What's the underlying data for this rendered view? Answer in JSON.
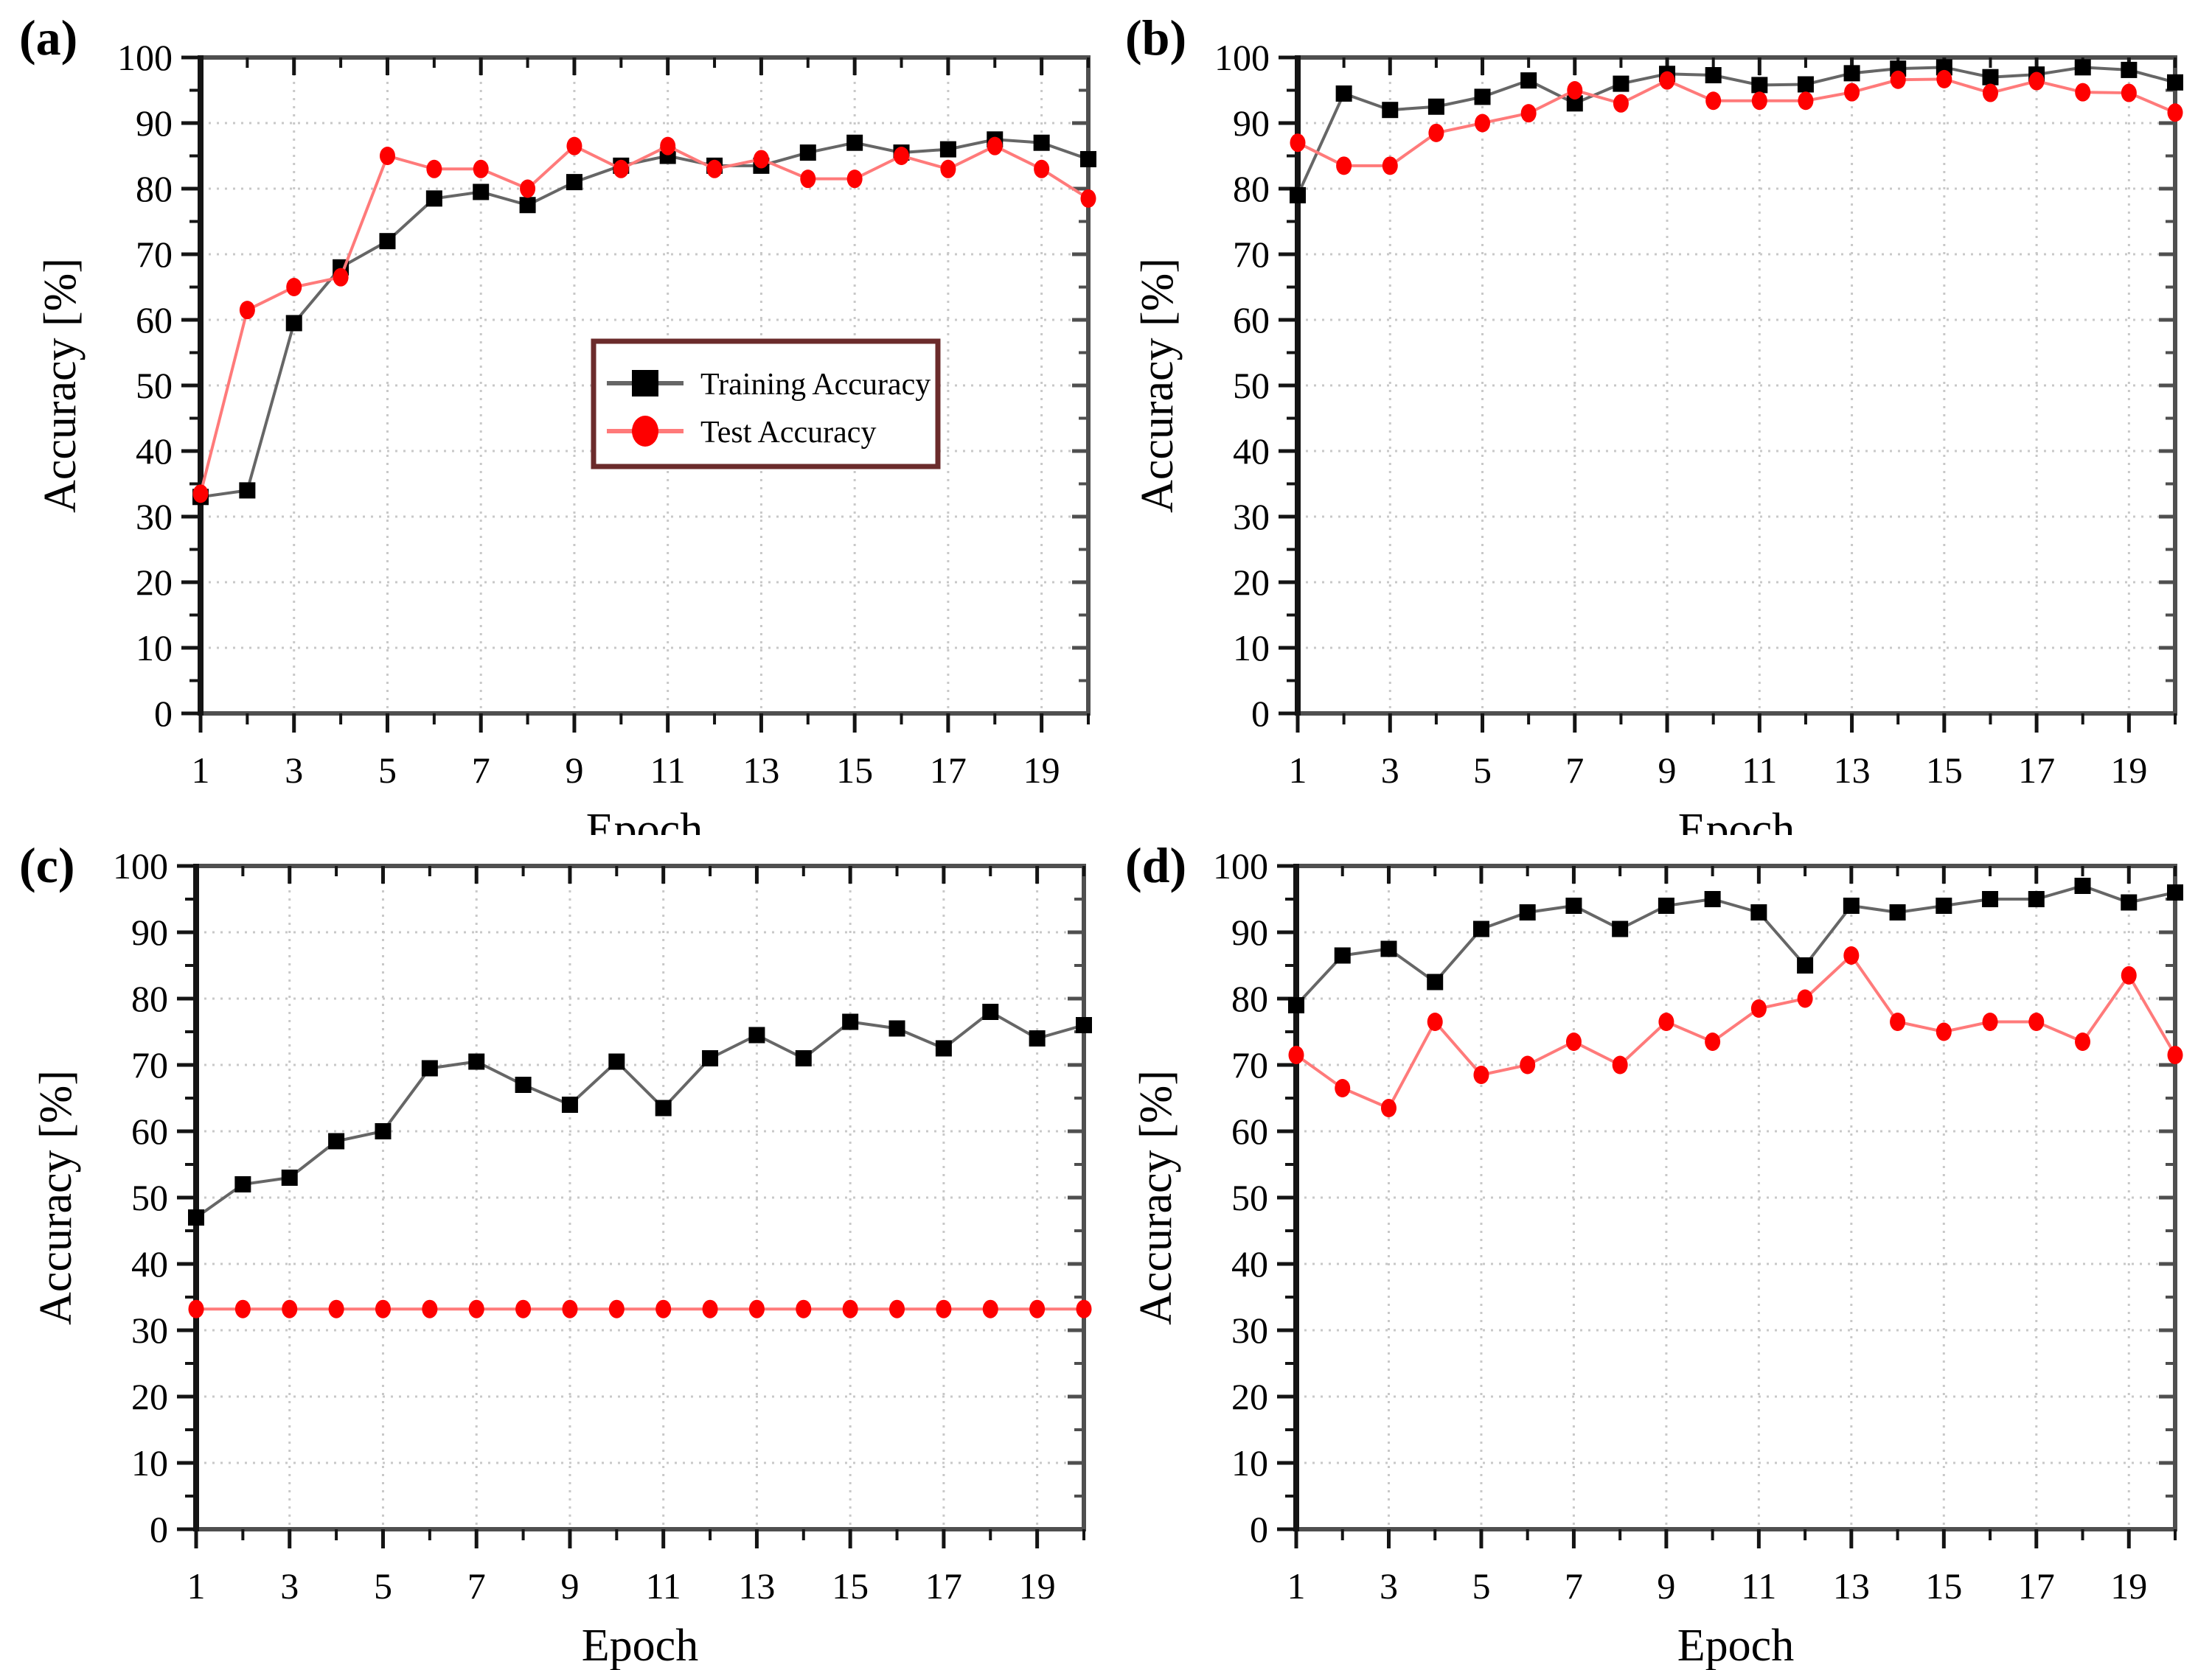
{
  "figure": {
    "legend": {
      "training_label": "Training Accuracy",
      "test_label": "Test Accuracy"
    },
    "colors": {
      "training_marker": "#000000",
      "training_line": "#666666",
      "test_marker": "#fe0000",
      "test_line": "#ff7a7a",
      "grid": "#c8c8c8",
      "frame": "#4f4f4f",
      "axis": "#141414",
      "legend_border": "#6b2b2b",
      "background": "#ffffff"
    }
  },
  "chart_data": [
    {
      "type": "line",
      "tag": "(a)",
      "xlabel": "Epoch",
      "ylabel": "Accuracy [%]",
      "xlim": [
        1,
        20
      ],
      "ylim": [
        0,
        100
      ],
      "xticks": [
        1,
        3,
        5,
        7,
        9,
        11,
        13,
        15,
        17,
        19
      ],
      "yticks": [
        0,
        10,
        20,
        30,
        40,
        50,
        60,
        70,
        80,
        90,
        100
      ],
      "grid": true,
      "legend_visible": true,
      "x": [
        1,
        2,
        3,
        4,
        5,
        6,
        7,
        8,
        9,
        10,
        11,
        12,
        13,
        14,
        15,
        16,
        17,
        18,
        19,
        20
      ],
      "series": [
        {
          "name": "Training Accuracy",
          "marker": "square",
          "values": [
            33,
            34,
            59.5,
            68,
            72,
            78.5,
            79.5,
            77.5,
            81,
            83.5,
            85,
            83.5,
            83.5,
            85.5,
            87,
            85.5,
            86,
            87.5,
            87,
            84.5
          ]
        },
        {
          "name": "Test Accuracy",
          "marker": "circle",
          "values": [
            33.5,
            61.5,
            65,
            66.5,
            85,
            83,
            83,
            80,
            86.5,
            83,
            86.5,
            83,
            84.5,
            81.5,
            81.5,
            85,
            83,
            86.5,
            83,
            78.5
          ]
        }
      ]
    },
    {
      "type": "line",
      "tag": "(b)",
      "xlabel": "Epoch",
      "ylabel": "Accuracy [%]",
      "xlim": [
        1,
        20
      ],
      "ylim": [
        0,
        100
      ],
      "xticks": [
        1,
        3,
        5,
        7,
        9,
        11,
        13,
        15,
        17,
        19
      ],
      "yticks": [
        0,
        10,
        20,
        30,
        40,
        50,
        60,
        70,
        80,
        90,
        100
      ],
      "grid": true,
      "legend_visible": false,
      "x": [
        1,
        2,
        3,
        4,
        5,
        6,
        7,
        8,
        9,
        10,
        11,
        12,
        13,
        14,
        15,
        16,
        17,
        18,
        19,
        20
      ],
      "series": [
        {
          "name": "Training Accuracy",
          "marker": "square",
          "values": [
            79,
            94.5,
            92,
            92.5,
            94,
            96.5,
            93,
            96,
            97.5,
            97.3,
            95.8,
            95.9,
            97.6,
            98.3,
            98.5,
            97,
            97.4,
            98.5,
            98.1,
            96.2
          ]
        },
        {
          "name": "Test Accuracy",
          "marker": "circle",
          "values": [
            87,
            83.5,
            83.5,
            88.5,
            90,
            91.5,
            95,
            93,
            96.5,
            93.4,
            93.4,
            93.4,
            94.7,
            96.6,
            96.7,
            94.6,
            96.4,
            94.7,
            94.6,
            91.6
          ]
        }
      ]
    },
    {
      "type": "line",
      "tag": "(c)",
      "xlabel": "Epoch",
      "ylabel": "Accuracy [%]",
      "xlim": [
        1,
        20
      ],
      "ylim": [
        0,
        100
      ],
      "xticks": [
        1,
        3,
        5,
        7,
        9,
        11,
        13,
        15,
        17,
        19
      ],
      "yticks": [
        0,
        10,
        20,
        30,
        40,
        50,
        60,
        70,
        80,
        90,
        100
      ],
      "grid": true,
      "legend_visible": false,
      "x": [
        1,
        2,
        3,
        4,
        5,
        6,
        7,
        8,
        9,
        10,
        11,
        12,
        13,
        14,
        15,
        16,
        17,
        18,
        19,
        20
      ],
      "series": [
        {
          "name": "Training Accuracy",
          "marker": "square",
          "values": [
            47,
            52,
            53,
            58.5,
            60,
            69.5,
            70.5,
            67,
            64,
            70.5,
            63.5,
            71,
            74.5,
            71,
            76.5,
            75.5,
            72.5,
            78,
            74,
            76
          ]
        },
        {
          "name": "Test Accuracy",
          "marker": "circle",
          "values": [
            33.2,
            33.2,
            33.2,
            33.2,
            33.2,
            33.2,
            33.2,
            33.2,
            33.2,
            33.2,
            33.2,
            33.2,
            33.2,
            33.2,
            33.2,
            33.2,
            33.2,
            33.2,
            33.2,
            33.2
          ]
        }
      ]
    },
    {
      "type": "line",
      "tag": "(d)",
      "xlabel": "Epoch",
      "ylabel": "Accuracy [%]",
      "xlim": [
        1,
        20
      ],
      "ylim": [
        0,
        100
      ],
      "xticks": [
        1,
        3,
        5,
        7,
        9,
        11,
        13,
        15,
        17,
        19
      ],
      "yticks": [
        0,
        10,
        20,
        30,
        40,
        50,
        60,
        70,
        80,
        90,
        100
      ],
      "grid": true,
      "legend_visible": false,
      "x": [
        1,
        2,
        3,
        4,
        5,
        6,
        7,
        8,
        9,
        10,
        11,
        12,
        13,
        14,
        15,
        16,
        17,
        18,
        19,
        20
      ],
      "series": [
        {
          "name": "Training Accuracy",
          "marker": "square",
          "values": [
            79,
            86.5,
            87.5,
            82.5,
            90.5,
            93,
            94,
            90.5,
            94,
            95,
            93,
            85,
            94,
            93,
            94,
            95,
            95,
            97,
            94.5,
            96
          ]
        },
        {
          "name": "Test Accuracy",
          "marker": "circle",
          "values": [
            71.5,
            66.5,
            63.5,
            76.5,
            68.5,
            70,
            73.5,
            70,
            76.5,
            73.5,
            78.5,
            80,
            86.5,
            76.5,
            75,
            76.5,
            76.5,
            73.5,
            83.5,
            71.5
          ]
        }
      ]
    }
  ]
}
